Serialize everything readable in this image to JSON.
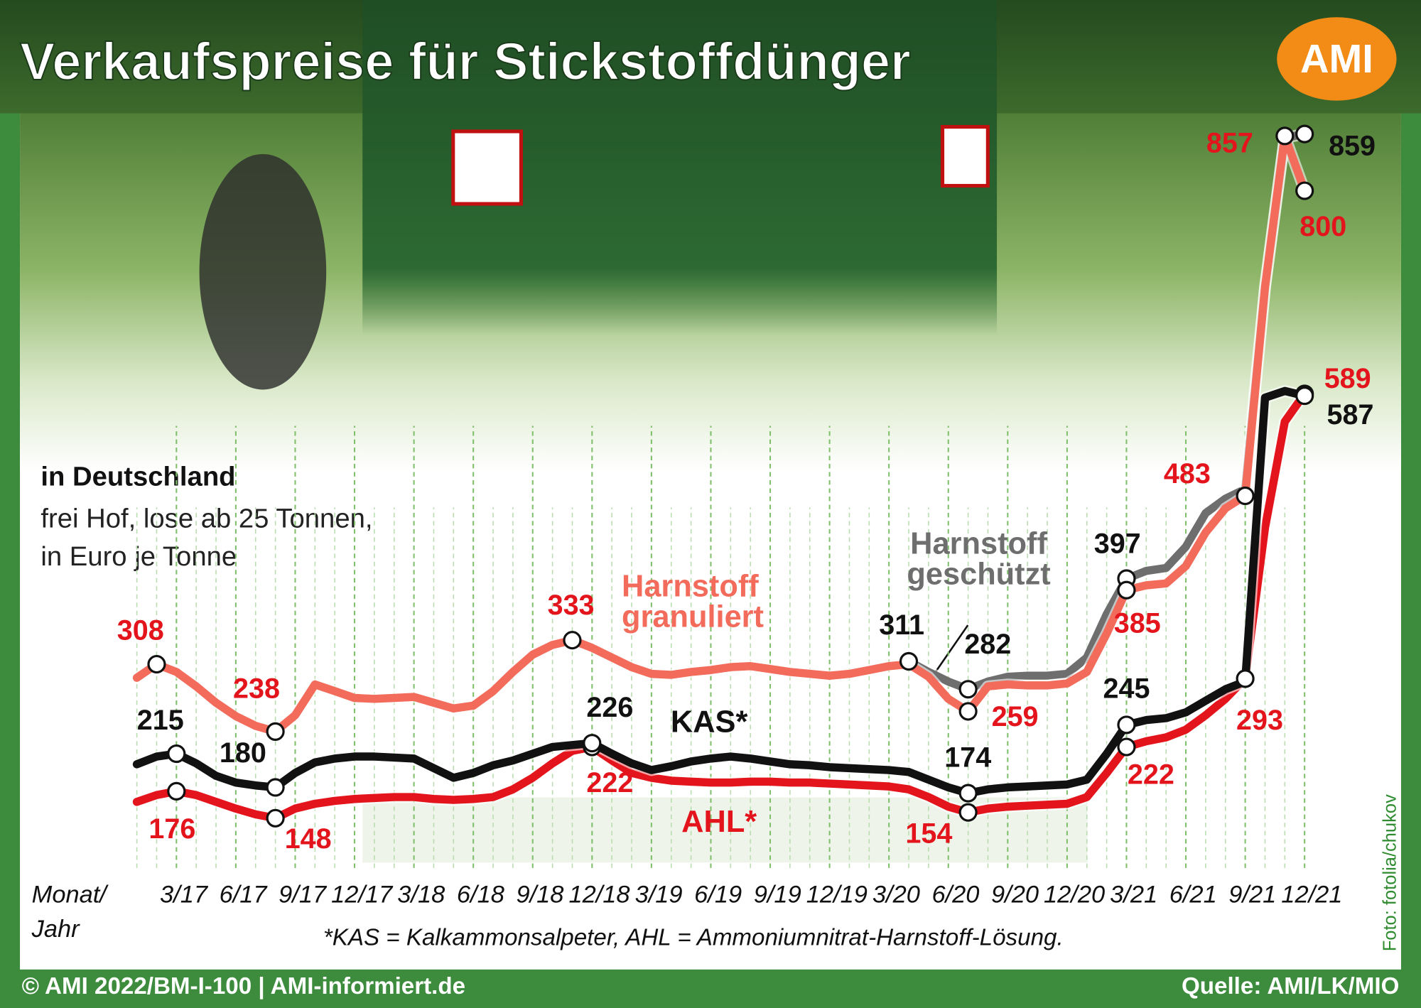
{
  "chart_data": {
    "type": "line",
    "title": "Verkaufspreise für Stickstoffdünger",
    "logo": "AMI",
    "region": "in Deutschland",
    "subtitle": [
      "frei Hof, lose ab 25 Tonnen,",
      "in Euro je Tonne"
    ],
    "x_label": [
      "Monat/",
      "Jahr"
    ],
    "footnote": "*KAS = Kalkammonsalpeter, AHL = Ammoniumnitrat-Harnstoff-Lösung.",
    "copyright": "© AMI 2022/BM-I-100 | AMI-informiert.de",
    "source": "Quelle: AMI/LK/MIO",
    "photo_credit": "Foto: fotolia/chukov",
    "categories": [
      null,
      null,
      "3/17",
      null,
      null,
      "6/17",
      null,
      null,
      "9/17",
      null,
      null,
      "12/17",
      null,
      null,
      "3/18",
      null,
      null,
      "6/18",
      null,
      null,
      "9/18",
      null,
      null,
      "12/18",
      null,
      null,
      "3/19",
      null,
      null,
      "6/19",
      null,
      null,
      "9/19",
      null,
      null,
      "12/19",
      null,
      null,
      "3/20",
      null,
      null,
      "6/20",
      null,
      null,
      "9/20",
      null,
      null,
      "12/20",
      null,
      null,
      "3/21",
      null,
      null,
      "6/21",
      null,
      null,
      "9/21",
      null,
      null,
      "12/21"
    ],
    "ylim": [
      100,
      870
    ],
    "series": [
      {
        "name": "Harnstoff geschützt",
        "color": "#6e6e6e",
        "values": [
          null,
          null,
          null,
          null,
          null,
          null,
          null,
          null,
          null,
          null,
          null,
          null,
          null,
          null,
          null,
          null,
          null,
          null,
          null,
          null,
          null,
          null,
          null,
          null,
          null,
          null,
          null,
          null,
          null,
          null,
          null,
          null,
          null,
          null,
          null,
          null,
          null,
          null,
          null,
          311,
          300,
          290,
          282,
          290,
          295,
          296,
          296,
          298,
          315,
          360,
          397,
          405,
          408,
          430,
          465,
          480,
          490,
          700,
          855,
          859
        ],
        "labeled_points": [
          39,
          42,
          50,
          59
        ]
      },
      {
        "name": "Harnstoff granuliert",
        "color": "#f26b5b",
        "values": [
          294,
          308,
          300,
          285,
          268,
          254,
          244,
          238,
          255,
          287,
          280,
          273,
          272,
          273,
          274,
          268,
          262,
          265,
          280,
          300,
          318,
          328,
          333,
          325,
          315,
          305,
          298,
          297,
          300,
          302,
          305,
          306,
          303,
          300,
          298,
          296,
          298,
          302,
          306,
          308,
          295,
          272,
          259,
          285,
          287,
          286,
          286,
          288,
          300,
          340,
          385,
          390,
          392,
          410,
          445,
          470,
          483,
          700,
          857,
          800
        ],
        "labeled_points": [
          1,
          7,
          22,
          42,
          50,
          56,
          58,
          59
        ]
      },
      {
        "name": "AHL*",
        "color": "#e3141b",
        "values": [
          165,
          172,
          176,
          172,
          165,
          158,
          152,
          148,
          158,
          163,
          166,
          168,
          169,
          170,
          170,
          168,
          167,
          168,
          170,
          178,
          190,
          205,
          218,
          222,
          208,
          195,
          190,
          187,
          186,
          185,
          185,
          186,
          186,
          185,
          185,
          184,
          183,
          182,
          181,
          178,
          170,
          160,
          154,
          158,
          160,
          161,
          162,
          163,
          170,
          195,
          222,
          228,
          232,
          240,
          255,
          272,
          293,
          450,
          560,
          589
        ],
        "labeled_points": [
          2,
          7,
          23,
          42,
          50,
          56,
          59
        ]
      },
      {
        "name": "KAS*",
        "color": "#111111",
        "values": [
          204,
          212,
          215,
          205,
          192,
          185,
          182,
          180,
          195,
          206,
          210,
          212,
          212,
          211,
          210,
          200,
          190,
          195,
          203,
          208,
          215,
          222,
          224,
          226,
          215,
          205,
          198,
          202,
          207,
          210,
          212,
          210,
          207,
          204,
          203,
          201,
          200,
          199,
          198,
          196,
          188,
          180,
          174,
          178,
          180,
          181,
          182,
          183,
          188,
          215,
          245,
          250,
          252,
          258,
          270,
          282,
          290,
          585,
          592,
          587
        ],
        "labeled_points": [
          2,
          7,
          23,
          42,
          50,
          59
        ]
      }
    ]
  }
}
